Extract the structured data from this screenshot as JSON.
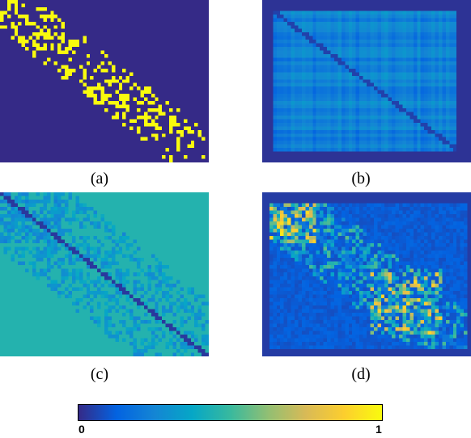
{
  "captions": {
    "a": "(a)",
    "b": "(b)",
    "c": "(c)",
    "d": "(d)"
  },
  "colorbar": {
    "min_label": "0",
    "max_label": "1",
    "colormap": "parula",
    "stops": [
      "#352a87",
      "#0363e1",
      "#1485d4",
      "#06a7c6",
      "#38b99e",
      "#92bf73",
      "#d9ba56",
      "#fcce2e",
      "#f9fb0e"
    ]
  },
  "chart_data": [
    {
      "type": "heatmap",
      "panel": "a",
      "description_level": "binary adjacency matrix",
      "value_range": [
        0,
        1
      ],
      "structure": "sparse band of 1s along the main diagonal with denser clusters at top-left and lower-middle"
    },
    {
      "type": "heatmap",
      "panel": "b",
      "value_range": [
        0,
        1
      ],
      "structure": "mostly low values with plaid row/column striping and a dark main diagonal"
    },
    {
      "type": "heatmap",
      "panel": "c",
      "value_range": [
        0,
        1
      ],
      "structure": "uniform mid value background with lower-valued band near diagonal and dark main diagonal"
    },
    {
      "type": "heatmap",
      "panel": "d",
      "value_range": [
        0,
        1
      ],
      "structure": "low background with brighter block clusters at top-left and lower-middle, bright diagonal band"
    }
  ]
}
